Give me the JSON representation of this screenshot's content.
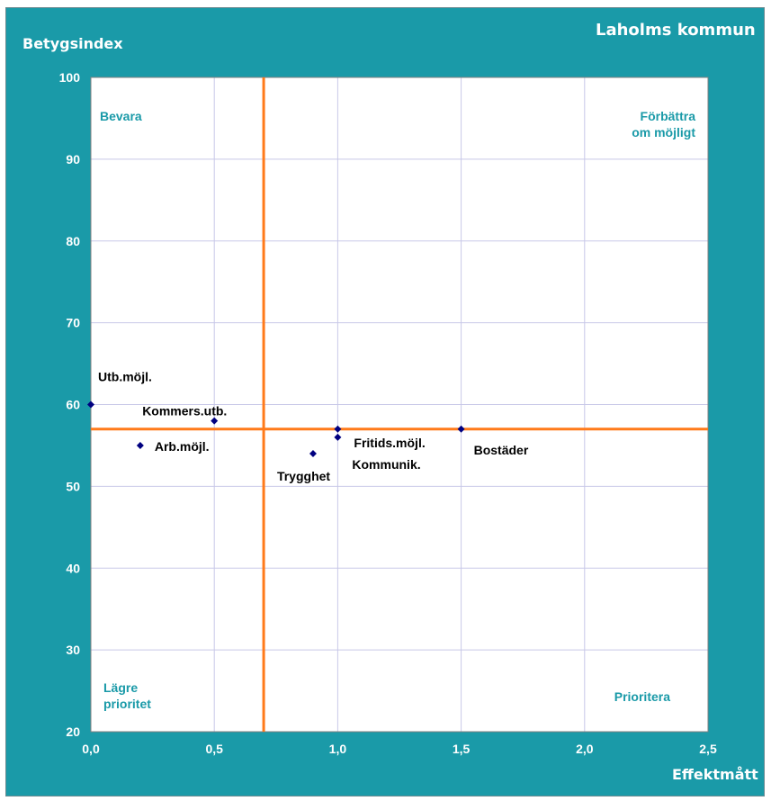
{
  "chart_data": {
    "type": "scatter",
    "title": "Laholms kommun",
    "xlabel": "Effektmått",
    "ylabel": "Betygsindex",
    "xlim": [
      0,
      2.5
    ],
    "ylim": [
      20,
      100
    ],
    "xticks": [
      "0,0",
      "0,5",
      "1,0",
      "1,5",
      "2,0",
      "2,5"
    ],
    "yticks": [
      "20",
      "30",
      "40",
      "50",
      "60",
      "70",
      "80",
      "90",
      "100"
    ],
    "grid": true,
    "points": [
      {
        "label": "Utb.möjl.",
        "x": 0.0,
        "y": 60
      },
      {
        "label": "Kommers.utb.",
        "x": 0.5,
        "y": 58
      },
      {
        "label": "Arb.möjl.",
        "x": 0.2,
        "y": 55
      },
      {
        "label": "Trygghet",
        "x": 0.9,
        "y": 54
      },
      {
        "label": "Fritids.möjl.",
        "x": 1.0,
        "y": 57
      },
      {
        "label": "Kommunik.",
        "x": 1.0,
        "y": 56
      },
      {
        "label": "Bostäder",
        "x": 1.5,
        "y": 57
      }
    ],
    "reference_lines": {
      "x": 0.7,
      "y": 57
    },
    "quadrants": {
      "top_left": "Bevara",
      "top_right": [
        "Förbättra",
        "om möjligt"
      ],
      "bottom_left": [
        "Lägre",
        "prioritet"
      ],
      "bottom_right": "Prioritera"
    },
    "colors": {
      "background": "#1a9aa8",
      "plot": "#ffffff",
      "grid": "#c8c8e8",
      "reference": "#ff7a1a",
      "marker": "#000080",
      "quadrant_text": "#1a9aa8"
    }
  }
}
